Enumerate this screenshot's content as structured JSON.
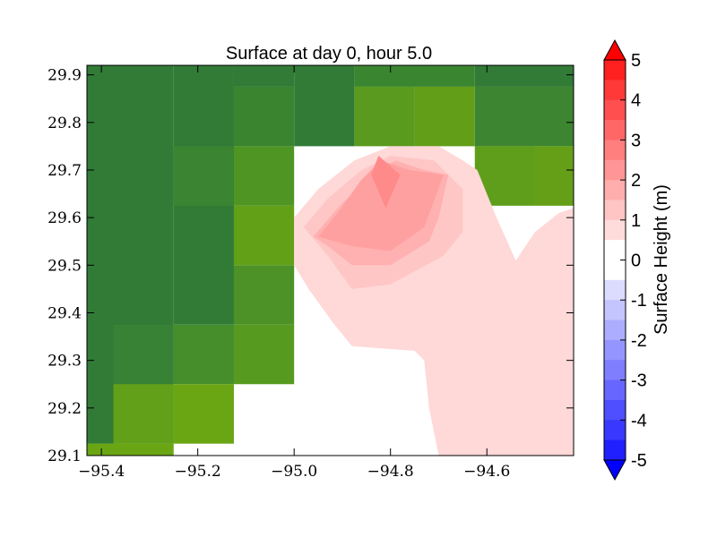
{
  "chart_data": {
    "type": "heatmap",
    "title": "Surface at day 0, hour 5.0",
    "xlabel": "",
    "ylabel": "",
    "xlim": [
      -95.43,
      -94.42
    ],
    "ylim": [
      29.1,
      29.92
    ],
    "x_ticks": [
      -95.4,
      -95.2,
      -95.0,
      -94.8,
      -94.6
    ],
    "x_tick_labels": [
      "−95.4",
      "−95.2",
      "−95.0",
      "−94.8",
      "−94.6"
    ],
    "y_ticks": [
      29.1,
      29.2,
      29.3,
      29.4,
      29.5,
      29.6,
      29.7,
      29.8,
      29.9
    ],
    "y_tick_labels": [
      "29.1",
      "29.2",
      "29.3",
      "29.4",
      "29.5",
      "29.6",
      "29.7",
      "29.8",
      "29.9"
    ],
    "grid": false,
    "land_cells": [
      {
        "x0": -95.43,
        "x1": -95.25,
        "y0": 29.125,
        "y1": 29.92,
        "color": "#317b37"
      },
      {
        "x0": -95.25,
        "x1": -95.125,
        "y0": 29.375,
        "y1": 29.92,
        "color": "#317b37"
      },
      {
        "x0": -95.125,
        "x1": -95.0,
        "y0": 29.875,
        "y1": 29.92,
        "color": "#317b37"
      },
      {
        "x0": -95.0,
        "x1": -94.875,
        "y0": 29.75,
        "y1": 29.92,
        "color": "#317b37"
      },
      {
        "x0": -94.875,
        "x1": -94.625,
        "y0": 29.875,
        "y1": 29.92,
        "color": "#3a8630"
      },
      {
        "x0": -94.625,
        "x1": -94.42,
        "y0": 29.875,
        "y1": 29.92,
        "color": "#317b37"
      },
      {
        "x0": -95.125,
        "x1": -95.0,
        "y0": 29.75,
        "y1": 29.875,
        "color": "#3a8430"
      },
      {
        "x0": -94.875,
        "x1": -94.75,
        "y0": 29.75,
        "y1": 29.875,
        "color": "#5a9a1e"
      },
      {
        "x0": -94.75,
        "x1": -94.625,
        "y0": 29.75,
        "y1": 29.875,
        "color": "#629e18"
      },
      {
        "x0": -94.625,
        "x1": -94.42,
        "y0": 29.75,
        "y1": 29.875,
        "color": "#3d8530"
      },
      {
        "x0": -95.25,
        "x1": -95.125,
        "y0": 29.625,
        "y1": 29.75,
        "color": "#3a8432"
      },
      {
        "x0": -95.125,
        "x1": -95.0,
        "y0": 29.625,
        "y1": 29.75,
        "color": "#4f9524"
      },
      {
        "x0": -94.625,
        "x1": -94.5,
        "y0": 29.625,
        "y1": 29.75,
        "color": "#5f9e1a"
      },
      {
        "x0": -94.5,
        "x1": -94.42,
        "y0": 29.625,
        "y1": 29.75,
        "color": "#659f18"
      },
      {
        "x0": -95.125,
        "x1": -95.0,
        "y0": 29.5,
        "y1": 29.625,
        "color": "#62a018"
      },
      {
        "x0": -95.125,
        "x1": -95.0,
        "y0": 29.375,
        "y1": 29.5,
        "color": "#4c9226"
      },
      {
        "x0": -95.43,
        "x1": -95.375,
        "y0": 29.125,
        "y1": 29.375,
        "color": "#317b37"
      },
      {
        "x0": -95.375,
        "x1": -95.25,
        "y0": 29.25,
        "y1": 29.375,
        "color": "#378234"
      },
      {
        "x0": -95.25,
        "x1": -95.125,
        "y0": 29.25,
        "y1": 29.375,
        "color": "#468d2c"
      },
      {
        "x0": -95.125,
        "x1": -95.0,
        "y0": 29.25,
        "y1": 29.375,
        "color": "#579a20"
      },
      {
        "x0": -95.375,
        "x1": -95.25,
        "y0": 29.125,
        "y1": 29.25,
        "color": "#62a01a"
      },
      {
        "x0": -95.25,
        "x1": -95.125,
        "y0": 29.125,
        "y1": 29.25,
        "color": "#6aa614"
      },
      {
        "x0": -95.43,
        "x1": -95.25,
        "y0": 29.1,
        "y1": 29.125,
        "color": "#6aa614"
      }
    ],
    "surface_contours": [
      {
        "level": "0 to 0.5",
        "color": "#ffd8d8",
        "points": [
          [
            -95.0,
            29.6
          ],
          [
            -94.95,
            29.66
          ],
          [
            -94.875,
            29.72
          ],
          [
            -94.8,
            29.75
          ],
          [
            -94.7,
            29.75
          ],
          [
            -94.65,
            29.72
          ],
          [
            -94.62,
            29.7
          ],
          [
            -94.58,
            29.6
          ],
          [
            -94.54,
            29.51
          ],
          [
            -94.5,
            29.57
          ],
          [
            -94.45,
            29.61
          ],
          [
            -94.42,
            29.62
          ],
          [
            -94.42,
            29.1
          ],
          [
            -94.7,
            29.1
          ],
          [
            -94.72,
            29.2
          ],
          [
            -94.73,
            29.3
          ],
          [
            -94.75,
            29.32
          ],
          [
            -94.88,
            29.33
          ],
          [
            -94.92,
            29.38
          ],
          [
            -94.97,
            29.45
          ],
          [
            -95.0,
            29.5
          ]
        ]
      },
      {
        "level": "0.5 to 1",
        "color": "#ffc6c6",
        "points": [
          [
            -94.98,
            29.58
          ],
          [
            -94.93,
            29.64
          ],
          [
            -94.86,
            29.7
          ],
          [
            -94.8,
            29.73
          ],
          [
            -94.71,
            29.72
          ],
          [
            -94.65,
            29.66
          ],
          [
            -94.65,
            29.57
          ],
          [
            -94.69,
            29.52
          ],
          [
            -94.8,
            29.46
          ],
          [
            -94.88,
            29.45
          ],
          [
            -94.93,
            29.52
          ]
        ]
      },
      {
        "level": "1 to 1.5",
        "color": "#ffb0b0",
        "points": [
          [
            -94.96,
            29.56
          ],
          [
            -94.91,
            29.62
          ],
          [
            -94.85,
            29.68
          ],
          [
            -94.79,
            29.72
          ],
          [
            -94.73,
            29.7
          ],
          [
            -94.68,
            29.69
          ],
          [
            -94.7,
            29.6
          ],
          [
            -94.72,
            29.55
          ],
          [
            -94.8,
            29.5
          ],
          [
            -94.88,
            29.5
          ],
          [
            -94.93,
            29.54
          ]
        ]
      },
      {
        "level": "1.5 to 2",
        "color": "#ffa0a0",
        "points": [
          [
            -94.95,
            29.56
          ],
          [
            -94.91,
            29.61
          ],
          [
            -94.86,
            29.68
          ],
          [
            -94.82,
            29.72
          ],
          [
            -94.76,
            29.7
          ],
          [
            -94.69,
            29.69
          ],
          [
            -94.73,
            29.58
          ],
          [
            -94.8,
            29.53
          ],
          [
            -94.88,
            29.54
          ]
        ]
      },
      {
        "level": "2 to 2.5",
        "color": "#ff8a8a",
        "points": [
          [
            -94.84,
            29.69
          ],
          [
            -94.825,
            29.73
          ],
          [
            -94.78,
            29.69
          ],
          [
            -94.81,
            29.62
          ]
        ]
      }
    ],
    "colorbar": {
      "label": "Surface Height (m)",
      "tick_labels": [
        "5",
        "4",
        "3",
        "2",
        "1",
        "0",
        "-1",
        "-2",
        "-3",
        "-4",
        "-5"
      ],
      "vmin": -5,
      "vmax": 5,
      "levels_per_unit": 2,
      "top_color": "#ff0000",
      "bottom_color": "#0000ff"
    }
  }
}
